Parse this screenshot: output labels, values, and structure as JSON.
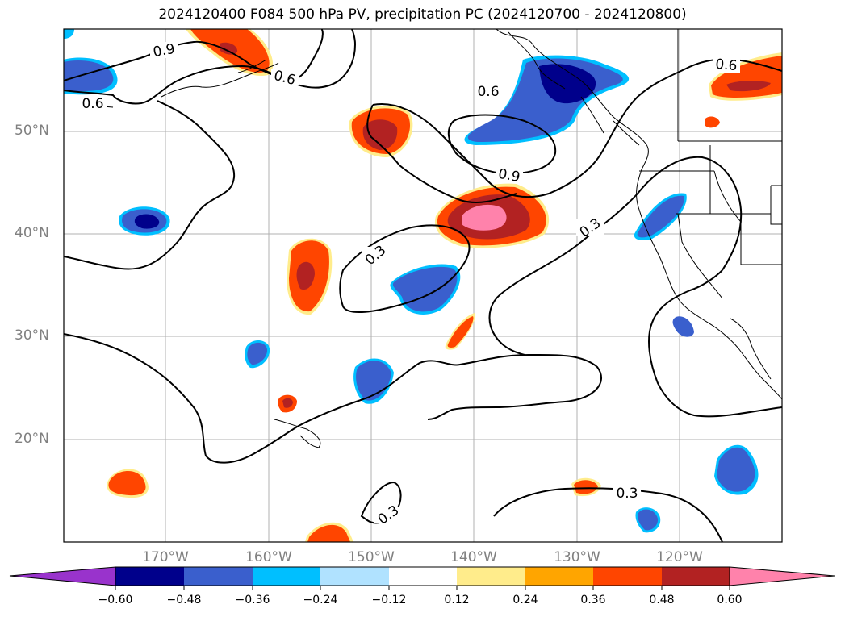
{
  "title": "2024120400 F084 500 hPa PV, precipitation PC (2024120700 - 2024120800)",
  "map": {
    "lat_labels": [
      "50°N",
      "40°N",
      "30°N",
      "20°N"
    ],
    "lon_labels": [
      "170°W",
      "160°W",
      "150°W",
      "140°W",
      "130°W",
      "120°W"
    ],
    "contour_labels": [
      "0.9",
      "0.6",
      "0.6",
      "0.6",
      "0.9",
      "0.6",
      "0.3",
      "0.3",
      "0.3",
      "0.3"
    ],
    "gridlines": true
  },
  "colorbar": {
    "ticks": [
      "−0.60",
      "−0.48",
      "−0.36",
      "−0.24",
      "−0.12",
      "0.12",
      "0.24",
      "0.36",
      "0.48",
      "0.60"
    ],
    "colors": [
      "#9933cc",
      "#00008b",
      "#3a5fcd",
      "#00bfff",
      "#b0e2ff",
      "#ffffff",
      "#ffec8b",
      "#ffa500",
      "#ff4500",
      "#b22222",
      "#ff82ab"
    ],
    "extend": "both"
  },
  "precip_colors": {
    "neg_strong": "#00008b",
    "neg_mid": "#3a5fcd",
    "neg_light": "#00bfff",
    "neg_faint": "#b0e2ff",
    "pos_faint": "#ffec8b",
    "pos_light": "#ffa500",
    "pos_mid": "#ff4500",
    "pos_strong": "#b22222",
    "pos_max": "#ff82ab"
  }
}
